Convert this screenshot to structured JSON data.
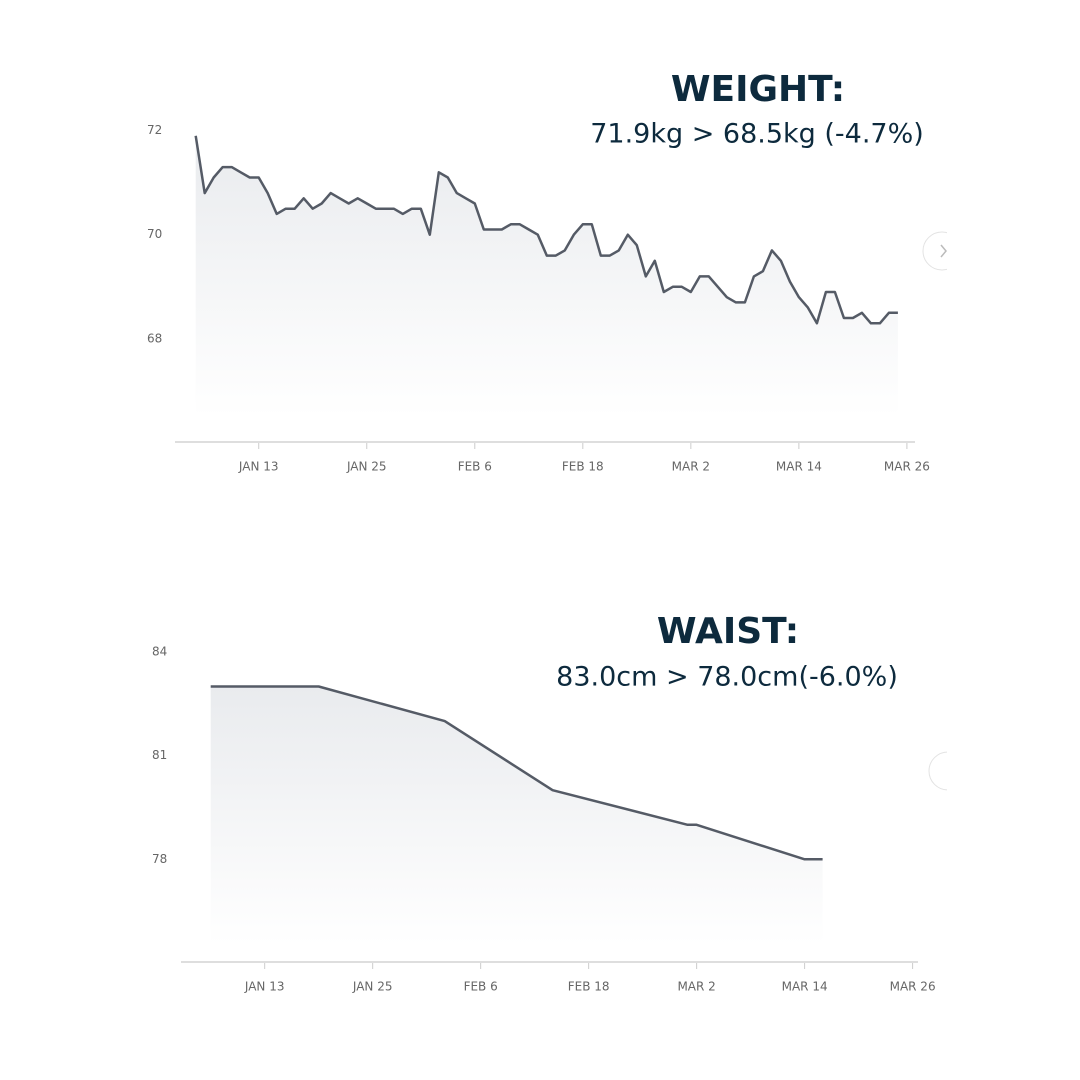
{
  "chart_data": [
    {
      "type": "line",
      "title": "WEIGHT:",
      "subtitle": "71.9kg > 68.5kg (-4.7%)",
      "x": [
        6,
        7,
        8,
        9,
        10,
        11,
        12,
        13,
        14,
        15,
        16,
        17,
        18,
        19,
        20,
        21,
        22,
        23,
        24,
        25,
        26,
        27,
        28,
        29,
        30,
        31,
        32,
        33,
        34,
        35,
        36,
        37,
        38,
        39,
        40,
        41,
        42,
        43,
        44,
        45,
        46,
        47,
        48,
        49,
        50,
        51,
        52,
        53,
        54,
        55,
        56,
        57,
        58,
        59,
        60,
        61,
        62,
        63,
        64,
        65,
        66,
        67,
        68,
        69,
        70,
        71,
        72,
        73,
        74,
        75,
        76,
        77,
        78,
        79,
        80,
        81,
        82,
        83,
        84
      ],
      "series": [
        {
          "name": "Weight",
          "color": "#555b66",
          "values": [
            71.9,
            70.8,
            71.1,
            71.3,
            71.3,
            71.2,
            71.1,
            71.1,
            70.8,
            70.4,
            70.5,
            70.5,
            70.7,
            70.5,
            70.6,
            70.8,
            70.7,
            70.6,
            70.7,
            70.6,
            70.5,
            70.5,
            70.5,
            70.4,
            70.5,
            70.5,
            70.0,
            71.2,
            71.1,
            70.8,
            70.7,
            70.6,
            70.1,
            70.1,
            70.1,
            70.2,
            70.2,
            70.1,
            70.0,
            69.6,
            69.6,
            69.7,
            70.0,
            70.2,
            70.2,
            69.6,
            69.6,
            69.7,
            70.0,
            69.8,
            69.2,
            69.5,
            68.9,
            69.0,
            69.0,
            68.9,
            69.2,
            69.2,
            69.0,
            68.8,
            68.7,
            68.7,
            69.2,
            69.3,
            69.7,
            69.5,
            69.1,
            68.8,
            68.6,
            68.3,
            68.9,
            68.9,
            68.4,
            68.4,
            68.5,
            68.3,
            68.3,
            68.5,
            68.5
          ]
        }
      ],
      "xlim": [
        3.7,
        85.9
      ],
      "xticks": [
        {
          "value": 13,
          "label": "JAN 13"
        },
        {
          "value": 25,
          "label": "JAN 25"
        },
        {
          "value": 37,
          "label": "FEB 6"
        },
        {
          "value": 49,
          "label": "FEB 18"
        },
        {
          "value": 61,
          "label": "MAR 2"
        },
        {
          "value": 73,
          "label": "MAR 14"
        },
        {
          "value": 85,
          "label": "MAR 26"
        }
      ],
      "ylim": [
        66,
        72.3
      ],
      "yticks": [
        68,
        70,
        72
      ]
    },
    {
      "type": "line",
      "title": "WAIST:",
      "subtitle": "83.0cm > 78.0cm(-6.0%)",
      "x": [
        7,
        19,
        33,
        45,
        60,
        61,
        73,
        75
      ],
      "series": [
        {
          "name": "Waist",
          "color": "#555b66",
          "values": [
            83.0,
            83.0,
            82.0,
            80.0,
            79.0,
            79.0,
            78.0,
            78.0
          ]
        }
      ],
      "xlim": [
        3.7,
        85.6
      ],
      "xticks": [
        {
          "value": 13,
          "label": "JAN 13"
        },
        {
          "value": 25,
          "label": "JAN 25"
        },
        {
          "value": 37,
          "label": "FEB 6"
        },
        {
          "value": 49,
          "label": "FEB 18"
        },
        {
          "value": 61,
          "label": "MAR 2"
        },
        {
          "value": 73,
          "label": "MAR 14"
        },
        {
          "value": 85,
          "label": "MAR 26"
        }
      ],
      "ylim": [
        75,
        85
      ],
      "yticks": [
        78,
        81,
        84
      ]
    }
  ]
}
